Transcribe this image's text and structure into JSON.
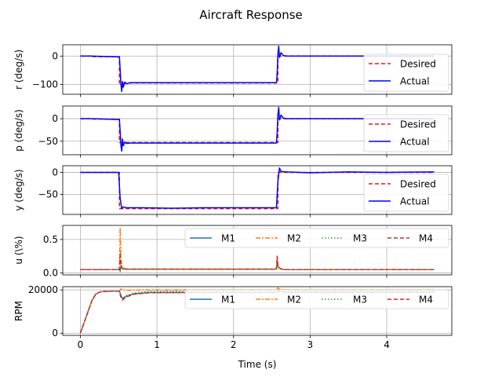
{
  "chart_data": {
    "title": "Aircraft Response",
    "type": "line",
    "xlabel": "Time (s)",
    "xlim": [
      -0.23,
      4.85
    ],
    "xticks": [
      0,
      1,
      2,
      3,
      4
    ],
    "xtick_labels": [
      "0",
      "1",
      "2",
      "3",
      "4"
    ],
    "subplots": [
      {
        "id": "r",
        "ylabel": "r (deg/s)",
        "ylim": [
          -135,
          40
        ],
        "yticks": [
          0,
          -100
        ],
        "ytick_labels": [
          "0",
          "−100"
        ],
        "grid": true,
        "legend": {
          "placement": "right",
          "columns": 1,
          "entries": [
            "Desired",
            "Actual"
          ]
        },
        "series": [
          {
            "name": "Desired",
            "color": "#e41a1c",
            "dash": "5,3",
            "x": [
              0,
              0.15,
              0.15,
              0.51,
              0.51,
              2.58,
              2.58,
              4.62
            ],
            "y": [
              0,
              0,
              -2,
              -2,
              -95,
              -95,
              0,
              0
            ]
          },
          {
            "name": "Actual",
            "color": "#0000ff",
            "dash": "",
            "x": [
              0,
              0.15,
              0.51,
              0.52,
              0.53,
              0.54,
              0.55,
              0.56,
              0.58,
              0.6,
              0.65,
              2.56,
              2.57,
              2.58,
              2.59,
              2.6,
              2.62,
              2.65,
              2.7,
              4.62
            ],
            "y": [
              0,
              0,
              -3,
              -50,
              -100,
              -125,
              -90,
              -110,
              -92,
              -98,
              -94,
              -94,
              -60,
              10,
              35,
              -5,
              12,
              2,
              0,
              0
            ]
          }
        ]
      },
      {
        "id": "p",
        "ylabel": "p (deg/s)",
        "ylim": [
          -80,
          28
        ],
        "yticks": [
          0,
          -50
        ],
        "ytick_labels": [
          "0",
          "−50"
        ],
        "grid": true,
        "legend": {
          "placement": "right",
          "columns": 1,
          "entries": [
            "Desired",
            "Actual"
          ]
        },
        "series": [
          {
            "name": "Desired",
            "color": "#e41a1c",
            "dash": "5,3",
            "x": [
              0,
              0.15,
              0.15,
              0.51,
              0.51,
              2.58,
              2.58,
              4.62
            ],
            "y": [
              0,
              0,
              -1,
              -1,
              -53,
              -53,
              0,
              0
            ]
          },
          {
            "name": "Actual",
            "color": "#0000ff",
            "dash": "",
            "x": [
              0,
              0.15,
              0.51,
              0.52,
              0.53,
              0.54,
              0.55,
              0.56,
              0.58,
              0.6,
              0.65,
              2.56,
              2.57,
              2.58,
              2.59,
              2.6,
              2.62,
              2.65,
              2.7,
              4.62
            ],
            "y": [
              0,
              0,
              -2,
              -30,
              -60,
              -72,
              -45,
              -60,
              -52,
              -55,
              -54,
              -54,
              -30,
              10,
              25,
              -3,
              8,
              1,
              0,
              0
            ]
          }
        ]
      },
      {
        "id": "y",
        "ylabel": "y (deg/s)",
        "ylim": [
          -95,
          15
        ],
        "yticks": [
          0,
          -50
        ],
        "ytick_labels": [
          "0",
          "−50"
        ],
        "grid": true,
        "legend": {
          "placement": "right",
          "columns": 1,
          "entries": [
            "Desired",
            "Actual"
          ]
        },
        "series": [
          {
            "name": "Desired",
            "color": "#e41a1c",
            "dash": "5,3",
            "x": [
              0,
              0.51,
              0.51,
              2.58,
              2.58,
              4.62
            ],
            "y": [
              0,
              0,
              -82,
              -82,
              0,
              0
            ]
          },
          {
            "name": "Actual",
            "color": "#0000ff",
            "dash": "",
            "x": [
              0,
              0.5,
              0.52,
              0.54,
              0.56,
              0.6,
              0.8,
              1.2,
              1.6,
              2.0,
              2.4,
              2.56,
              2.58,
              2.6,
              2.62,
              2.7,
              3.0,
              3.5,
              4.0,
              4.62
            ],
            "y": [
              0,
              0,
              -60,
              -82,
              -78,
              -80,
              -80,
              -81,
              -80,
              -80,
              -80,
              -80,
              -20,
              10,
              2,
              1,
              -1,
              1,
              0,
              1
            ]
          }
        ]
      },
      {
        "id": "u",
        "ylabel": "u (\\%)",
        "ylim": [
          -0.03,
          0.71
        ],
        "yticks": [
          0.0,
          0.5
        ],
        "ytick_labels": [
          "0.0",
          "0.5"
        ],
        "grid": true,
        "legend": {
          "placement": "upper right",
          "columns": 4,
          "entries": [
            "M1",
            "M2",
            "M3",
            "M4"
          ]
        },
        "series": [
          {
            "name": "M1",
            "color": "#1f77b4",
            "dash": "",
            "x": [
              0,
              0.51,
              0.52,
              0.53,
              0.55,
              0.6,
              2.56,
              2.57,
              2.58,
              2.6,
              2.65,
              4.62
            ],
            "y": [
              0.05,
              0.05,
              0.03,
              0.1,
              0.06,
              0.055,
              0.055,
              0.18,
              0.1,
              0.07,
              0.05,
              0.05
            ]
          },
          {
            "name": "M2",
            "color": "#ff7f0e",
            "dash": "6,2,2,2",
            "x": [
              0,
              0.51,
              0.52,
              0.53,
              0.55,
              0.6,
              2.56,
              2.57,
              2.58,
              2.6,
              2.65,
              4.62
            ],
            "y": [
              0.05,
              0.05,
              0.68,
              0.2,
              0.08,
              0.06,
              0.06,
              0.22,
              0.12,
              0.07,
              0.05,
              0.05
            ]
          },
          {
            "name": "M3",
            "color": "#2ca02c",
            "dash": "1.5,2.5",
            "x": [
              0,
              0.51,
              0.52,
              0.53,
              0.55,
              0.6,
              2.56,
              2.57,
              2.58,
              2.6,
              2.65,
              4.62
            ],
            "y": [
              0.05,
              0.05,
              0.02,
              0.12,
              0.06,
              0.055,
              0.055,
              0.15,
              0.09,
              0.06,
              0.05,
              0.05
            ]
          },
          {
            "name": "M4",
            "color": "#d62728",
            "dash": "5,3",
            "x": [
              0,
              0.51,
              0.52,
              0.53,
              0.55,
              0.6,
              2.56,
              2.57,
              2.58,
              2.6,
              2.65,
              4.62
            ],
            "y": [
              0.05,
              0.05,
              0.3,
              0.09,
              0.06,
              0.055,
              0.055,
              0.25,
              0.11,
              0.07,
              0.05,
              0.05
            ]
          }
        ]
      },
      {
        "id": "rpm",
        "ylabel": "RPM",
        "ylim": [
          -1000,
          21500
        ],
        "yticks": [
          0,
          20000
        ],
        "ytick_labels": [
          "0",
          "20000"
        ],
        "grid": true,
        "legend": {
          "placement": "upper right",
          "columns": 4,
          "entries": [
            "M1",
            "M2",
            "M3",
            "M4"
          ]
        },
        "series": [
          {
            "name": "M1",
            "color": "#1f77b4",
            "dash": "",
            "x": [
              0,
              0.05,
              0.1,
              0.15,
              0.2,
              0.25,
              0.3,
              0.4,
              0.51,
              0.53,
              0.55,
              0.6,
              0.7,
              0.9,
              1.2,
              2.56,
              2.58,
              2.6,
              2.7,
              3.0,
              4.62
            ],
            "y": [
              0,
              5000,
              10000,
              15000,
              18000,
              19000,
              19300,
              19400,
              19400,
              17500,
              16000,
              17000,
              18200,
              18800,
              18800,
              18800,
              19800,
              19200,
              19000,
              19000,
              19000
            ]
          },
          {
            "name": "M2",
            "color": "#ff7f0e",
            "dash": "6,2,2,2",
            "x": [
              0,
              0.05,
              0.1,
              0.15,
              0.2,
              0.25,
              0.3,
              0.4,
              0.51,
              0.53,
              0.55,
              0.6,
              0.7,
              0.9,
              1.2,
              2.56,
              2.58,
              2.6,
              2.7,
              3.0,
              4.62
            ],
            "y": [
              0,
              5000,
              10000,
              15000,
              18000,
              19000,
              19300,
              19400,
              19400,
              20500,
              20000,
              19800,
              19900,
              20000,
              20000,
              20000,
              21000,
              20300,
              20000,
              20000,
              20000
            ]
          },
          {
            "name": "M3",
            "color": "#2ca02c",
            "dash": "1.5,2.5",
            "x": [
              0,
              0.05,
              0.1,
              0.15,
              0.2,
              0.25,
              0.3,
              0.4,
              0.51,
              0.53,
              0.55,
              0.6,
              0.7,
              0.9,
              1.2,
              2.56,
              2.58,
              2.6,
              2.7,
              3.0,
              4.62
            ],
            "y": [
              0,
              5000,
              10000,
              15000,
              18000,
              19000,
              19300,
              19400,
              19400,
              17000,
              16200,
              17500,
              18600,
              19300,
              19400,
              19400,
              19800,
              19500,
              19400,
              19400,
              19400
            ]
          },
          {
            "name": "M4",
            "color": "#d62728",
            "dash": "5,3",
            "x": [
              0,
              0.05,
              0.1,
              0.15,
              0.2,
              0.25,
              0.3,
              0.4,
              0.51,
              0.53,
              0.55,
              0.6,
              0.7,
              0.9,
              1.2,
              2.56,
              2.58,
              2.6,
              2.7,
              3.0,
              4.62
            ],
            "y": [
              0,
              5000,
              10000,
              15000,
              18000,
              19000,
              19300,
              19400,
              19400,
              16500,
              15300,
              16800,
              18000,
              18700,
              18800,
              18800,
              19500,
              19000,
              18800,
              18800,
              18800
            ]
          }
        ]
      }
    ]
  }
}
